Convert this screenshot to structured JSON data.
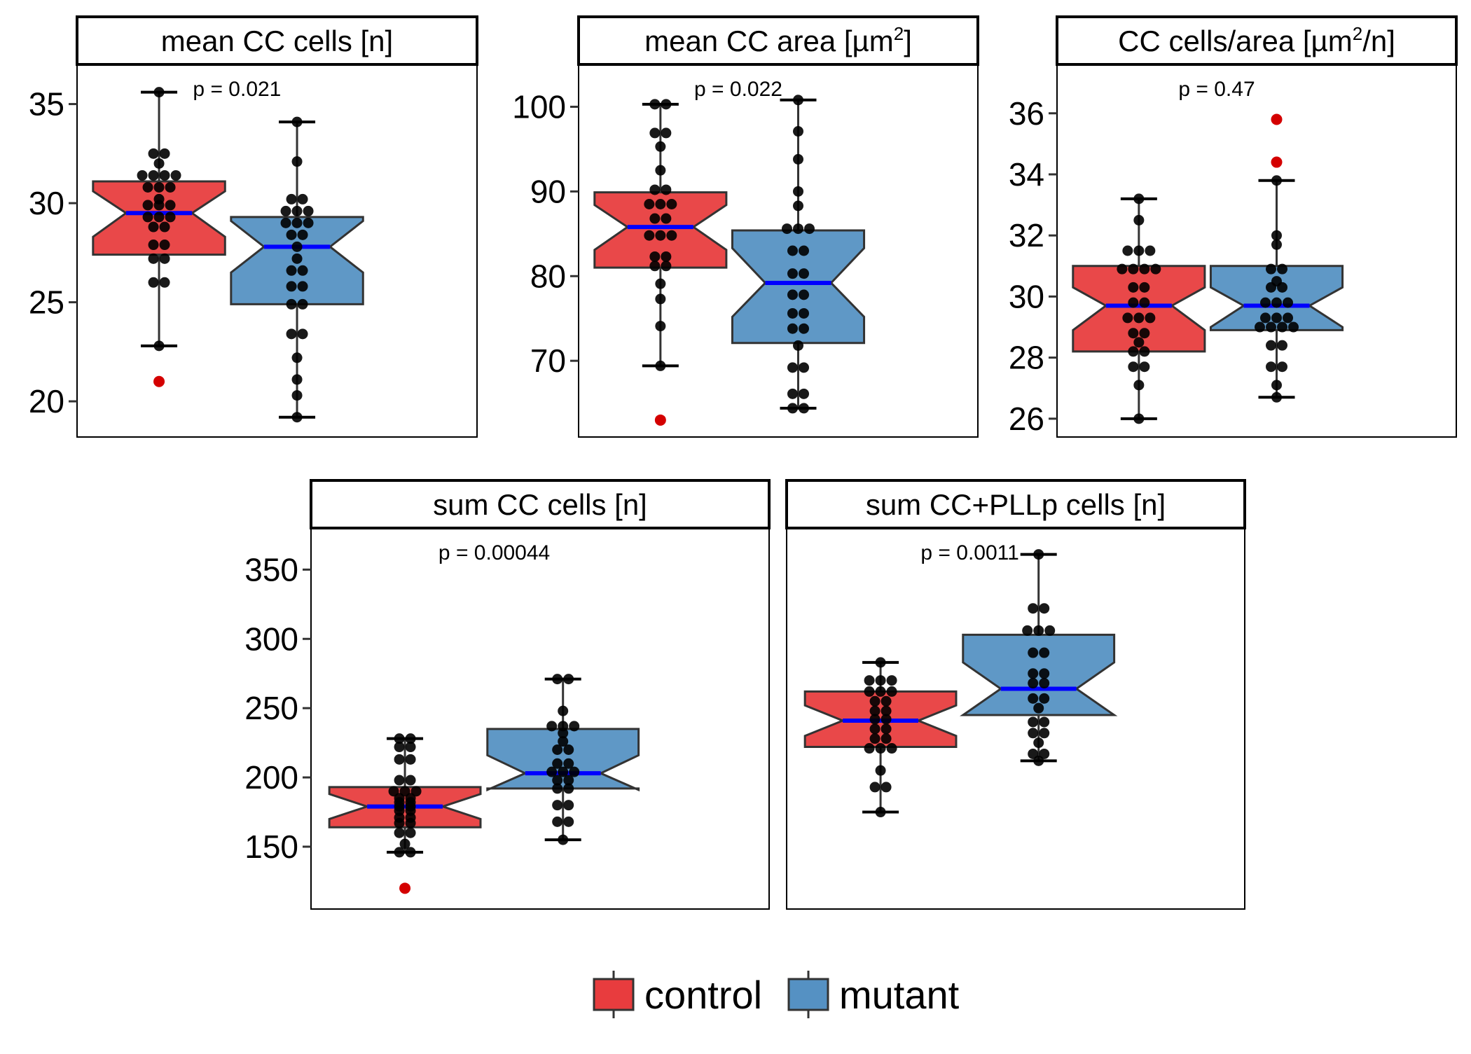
{
  "colors": {
    "control": "#E41A1C",
    "mutant": "#377EB8",
    "median": "#0000FF",
    "outlier": "#D40000",
    "dot": "#000000",
    "frame": "#000000",
    "box_line": "#333333"
  },
  "legend": {
    "position": "bottom",
    "items": [
      {
        "key": "control",
        "label": "control"
      },
      {
        "key": "mutant",
        "label": "mutant"
      }
    ]
  },
  "chart_data": [
    {
      "type": "boxplot",
      "title": "mean CC cells [n]",
      "title_sup": "",
      "title_end": "",
      "p_label": "p = 0.021",
      "ylim": [
        18.2,
        37
      ],
      "yticks": [
        20,
        25,
        30,
        35
      ],
      "groups": [
        {
          "name": "control",
          "whisker_low": 22.8,
          "q1": 27.4,
          "median": 29.5,
          "q3": 31.1,
          "whisker_high": 35.6,
          "notch_low": 28.3,
          "notch_high": 30.6,
          "outliers": [
            21.0
          ],
          "points": [
            35.6,
            32.5,
            32.5,
            32.0,
            31.4,
            31.4,
            31.4,
            31.4,
            30.8,
            30.8,
            30.8,
            30.2,
            29.9,
            29.9,
            29.9,
            29.3,
            29.3,
            29.3,
            28.8,
            28.8,
            27.9,
            27.9,
            27.2,
            27.2,
            26.0,
            26.0,
            22.8
          ]
        },
        {
          "name": "mutant",
          "whisker_low": 19.2,
          "q1": 24.9,
          "median": 27.8,
          "q3": 29.3,
          "whisker_high": 34.1,
          "notch_low": 26.5,
          "notch_high": 29.1,
          "outliers": [],
          "points": [
            34.1,
            32.1,
            30.2,
            30.2,
            29.6,
            29.6,
            29.6,
            29.0,
            29.0,
            29.0,
            28.4,
            28.4,
            27.8,
            27.2,
            26.6,
            26.6,
            25.8,
            25.8,
            24.9,
            24.9,
            23.4,
            23.4,
            22.2,
            21.1,
            20.3,
            19.2
          ]
        }
      ]
    },
    {
      "type": "boxplot",
      "title": "mean CC area [µm",
      "title_sup": "2",
      "title_end": "]",
      "p_label": "p = 0.022",
      "ylim": [
        61,
        105
      ],
      "yticks": [
        70,
        80,
        90,
        100
      ],
      "groups": [
        {
          "name": "control",
          "whisker_low": 69.4,
          "q1": 81.0,
          "median": 85.8,
          "q3": 89.9,
          "whisker_high": 100.3,
          "notch_low": 83.1,
          "notch_high": 88.4,
          "outliers": [
            63.0
          ],
          "points": [
            100.3,
            100.3,
            96.9,
            96.9,
            95.3,
            92.5,
            90.2,
            90.2,
            88.5,
            88.5,
            88.5,
            86.8,
            86.8,
            84.8,
            84.8,
            84.8,
            82.3,
            82.3,
            81.2,
            81.2,
            79.1,
            77.3,
            74.1,
            69.4
          ]
        },
        {
          "name": "mutant",
          "whisker_low": 64.4,
          "q1": 72.1,
          "median": 79.2,
          "q3": 85.4,
          "whisker_high": 100.8,
          "notch_low": 75.2,
          "notch_high": 83.3,
          "outliers": [],
          "points": [
            100.8,
            97.1,
            93.8,
            90.0,
            88.3,
            85.6,
            85.6,
            85.6,
            83.0,
            83.0,
            80.3,
            80.3,
            77.8,
            77.8,
            75.6,
            75.6,
            73.8,
            73.8,
            71.8,
            69.2,
            69.2,
            66.1,
            66.1,
            64.4,
            64.4
          ]
        }
      ]
    },
    {
      "type": "boxplot",
      "title": "CC cells/area [µm",
      "title_sup": "2",
      "title_end": "/n]",
      "p_label": "p = 0.47",
      "ylim": [
        25.4,
        37.6
      ],
      "yticks": [
        26,
        28,
        30,
        32,
        34,
        36
      ],
      "groups": [
        {
          "name": "control",
          "whisker_low": 26.0,
          "q1": 28.2,
          "median": 29.7,
          "q3": 31.0,
          "whisker_high": 33.2,
          "notch_low": 28.9,
          "notch_high": 30.3,
          "outliers": [],
          "points": [
            33.2,
            32.5,
            31.5,
            31.5,
            31.5,
            30.9,
            30.9,
            30.9,
            30.9,
            30.3,
            30.3,
            29.8,
            29.8,
            29.3,
            29.3,
            29.3,
            28.8,
            28.8,
            28.5,
            28.2,
            28.2,
            27.7,
            27.7,
            27.1,
            26.0
          ]
        },
        {
          "name": "mutant",
          "whisker_low": 26.7,
          "q1": 28.9,
          "median": 29.7,
          "q3": 31.0,
          "whisker_high": 33.8,
          "notch_low": 29.0,
          "notch_high": 30.3,
          "outliers": [
            35.8,
            34.4
          ],
          "points": [
            33.8,
            32.0,
            31.7,
            30.9,
            30.9,
            30.5,
            30.3,
            30.3,
            29.8,
            29.8,
            29.8,
            29.3,
            29.3,
            29.3,
            29.0,
            29.0,
            29.0,
            29.0,
            28.4,
            28.4,
            27.7,
            27.7,
            27.1,
            26.7
          ]
        }
      ]
    },
    {
      "type": "boxplot",
      "title": "sum CC cells [n]",
      "title_sup": "",
      "title_end": "",
      "p_label": "p = 0.00044",
      "ylim": [
        105,
        380
      ],
      "yticks": [
        150,
        200,
        250,
        300,
        350
      ],
      "groups": [
        {
          "name": "control",
          "whisker_low": 146,
          "q1": 164,
          "median": 179,
          "q3": 193,
          "whisker_high": 228,
          "notch_low": 170,
          "notch_high": 188,
          "outliers": [
            120
          ],
          "points": [
            228,
            228,
            222,
            222,
            213,
            213,
            198,
            198,
            190,
            190,
            190,
            185,
            185,
            182,
            182,
            179,
            179,
            176,
            176,
            171,
            171,
            167,
            167,
            160,
            160,
            152,
            146,
            146
          ]
        },
        {
          "name": "mutant",
          "whisker_low": 155,
          "q1": 192,
          "median": 203,
          "q3": 235,
          "whisker_high": 271,
          "notch_low": 191,
          "notch_high": 216,
          "outliers": [],
          "points": [
            271,
            271,
            248,
            237,
            237,
            237,
            232,
            226,
            220,
            220,
            210,
            210,
            204,
            204,
            204,
            198,
            198,
            192,
            192,
            180,
            180,
            168,
            168,
            155
          ]
        }
      ]
    },
    {
      "type": "boxplot",
      "title": "sum CC+PLLp cells [n]",
      "title_sup": "",
      "title_end": "",
      "p_label": "p = 0.0011",
      "ylim": [
        105,
        380
      ],
      "yticks": [],
      "groups": [
        {
          "name": "control",
          "whisker_low": 175,
          "q1": 222,
          "median": 241,
          "q3": 262,
          "whisker_high": 283,
          "notch_low": 230,
          "notch_high": 252,
          "outliers": [],
          "points": [
            283,
            270,
            270,
            270,
            262,
            262,
            262,
            255,
            255,
            248,
            248,
            242,
            242,
            235,
            235,
            228,
            228,
            221,
            221,
            221,
            205,
            193,
            193,
            175
          ]
        },
        {
          "name": "mutant",
          "whisker_low": 212,
          "q1": 245,
          "median": 264,
          "q3": 303,
          "whisker_high": 361,
          "notch_low": 245,
          "notch_high": 283,
          "outliers": [],
          "points": [
            361,
            322,
            322,
            306,
            306,
            306,
            290,
            290,
            275,
            275,
            268,
            268,
            257,
            257,
            250,
            240,
            240,
            232,
            232,
            225,
            217,
            217,
            212
          ]
        }
      ]
    }
  ]
}
